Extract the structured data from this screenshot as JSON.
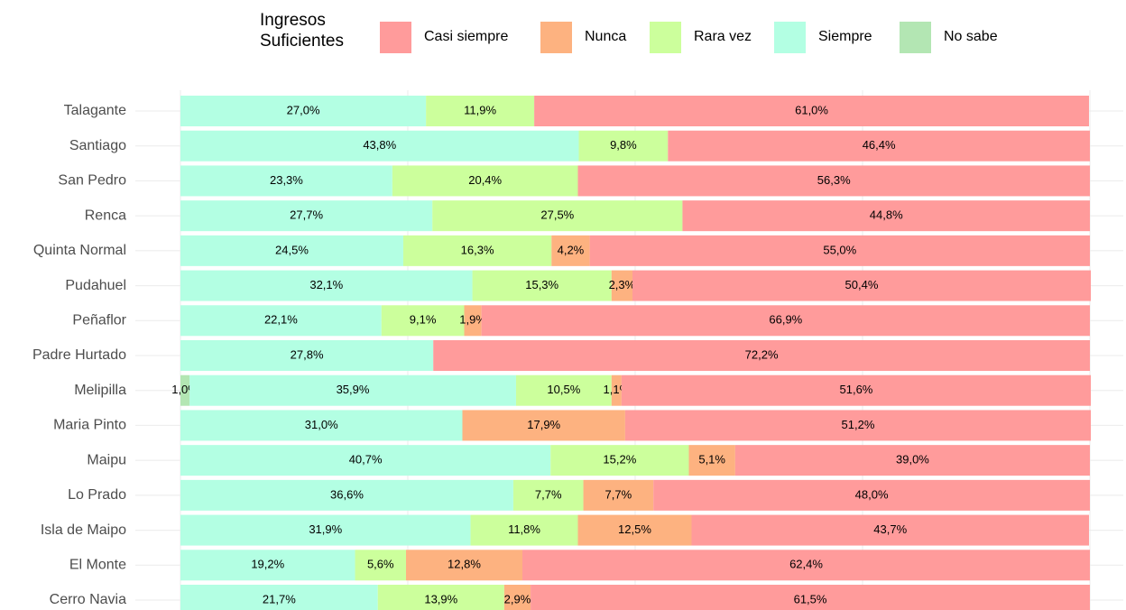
{
  "chart_data": {
    "type": "stacked-bar-horizontal",
    "legend_title": "Ingresos Suficientes",
    "categories": [
      "Talagante",
      "Santiago",
      "San Pedro",
      "Renca",
      "Quinta Normal",
      "Pudahuel",
      "Peñaflor",
      "Padre Hurtado",
      "Melipilla",
      "Maria Pinto",
      "Maipu",
      "Lo Prado",
      "Isla de Maipo",
      "El Monte",
      "Cerro Navia"
    ],
    "xlim": [
      0,
      100
    ],
    "xticks": [
      0,
      25,
      50,
      75,
      100
    ],
    "grid": true,
    "legend": "top",
    "series": [
      {
        "name": "Casi siempre",
        "color": "#ff9b9b",
        "values": [
          61.0,
          46.4,
          56.3,
          44.8,
          55.0,
          50.4,
          66.9,
          72.2,
          51.6,
          51.2,
          39.0,
          48.0,
          43.7,
          62.4,
          61.5
        ],
        "value_labels": [
          "61,0%",
          "46,4%",
          "56,3%",
          "44,8%",
          "55,0%",
          "50,4%",
          "66,9%",
          "72,2%",
          "51,6%",
          "51,2%",
          "39,0%",
          "48,0%",
          "43,7%",
          "62,4%",
          "61,5%"
        ]
      },
      {
        "name": "Nunca",
        "color": "#fdb280",
        "values": [
          null,
          null,
          null,
          null,
          4.2,
          2.3,
          1.9,
          null,
          1.1,
          17.9,
          5.1,
          7.7,
          12.5,
          12.8,
          2.9
        ],
        "value_labels": [
          null,
          null,
          null,
          null,
          "4,2%",
          "2,3%",
          "1,9%",
          null,
          "1,1%",
          "17,9%",
          "5,1%",
          "7,7%",
          "12,5%",
          "12,8%",
          "2,9%"
        ]
      },
      {
        "name": "Rara vez",
        "color": "#ccff9c",
        "values": [
          11.9,
          9.8,
          20.4,
          27.5,
          16.3,
          15.3,
          9.1,
          null,
          10.5,
          null,
          15.2,
          7.7,
          11.8,
          5.6,
          13.9
        ],
        "value_labels": [
          "11,9%",
          "9,8%",
          "20,4%",
          "27,5%",
          "16,3%",
          "15,3%",
          "9,1%",
          null,
          "10,5%",
          null,
          "15,2%",
          "7,7%",
          "11,8%",
          "5,6%",
          "13,9%"
        ]
      },
      {
        "name": "Siempre",
        "color": "#b3ffe3",
        "values": [
          27.0,
          43.8,
          23.3,
          27.7,
          24.5,
          32.1,
          22.1,
          27.8,
          35.9,
          31.0,
          40.7,
          36.6,
          31.9,
          19.2,
          21.7
        ],
        "value_labels": [
          "27,0%",
          "43,8%",
          "23,3%",
          "27,7%",
          "24,5%",
          "32,1%",
          "22,1%",
          "27,8%",
          "35,9%",
          "31,0%",
          "40,7%",
          "36,6%",
          "31,9%",
          "19,2%",
          "21,7%"
        ]
      },
      {
        "name": "No sabe",
        "color": "#b3e6b3",
        "values": [
          null,
          null,
          null,
          null,
          null,
          null,
          null,
          null,
          1.0,
          null,
          null,
          null,
          null,
          null,
          null
        ],
        "value_labels": [
          null,
          null,
          null,
          null,
          null,
          null,
          null,
          null,
          "1,0%",
          null,
          null,
          null,
          null,
          null,
          null
        ]
      }
    ]
  }
}
